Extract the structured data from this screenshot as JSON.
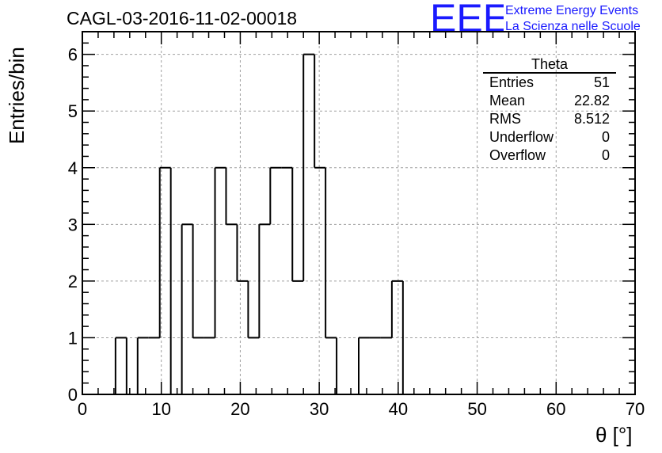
{
  "title": "CAGL-03-2016-11-02-00018",
  "logo": {
    "mark": "EEE",
    "line1": "Extreme Energy Events",
    "line2": "La Scienza nelle Scuole",
    "color": "#1a1aff"
  },
  "stats": {
    "title": "Theta",
    "rows": [
      {
        "label": "Entries",
        "value": "51"
      },
      {
        "label": "Mean",
        "value": "22.82"
      },
      {
        "label": "RMS",
        "value": "8.512"
      },
      {
        "label": "Underflow",
        "value": "0"
      },
      {
        "label": "Overflow",
        "value": "0"
      }
    ]
  },
  "chart_data": {
    "type": "bar",
    "style": "step-histogram",
    "xlabel": "θ [°]",
    "ylabel": "Entries/bin",
    "xlim": [
      0,
      70
    ],
    "ylim": [
      0,
      6.4
    ],
    "bin_width": 1.4,
    "x_ticks": [
      0,
      10,
      20,
      30,
      40,
      50,
      60,
      70
    ],
    "y_ticks": [
      0,
      1,
      2,
      3,
      4,
      5,
      6
    ],
    "grid": true,
    "bins": [
      {
        "x0": 4.2,
        "count": 1
      },
      {
        "x0": 5.6,
        "count": 0
      },
      {
        "x0": 7.0,
        "count": 1
      },
      {
        "x0": 8.4,
        "count": 1
      },
      {
        "x0": 9.8,
        "count": 4
      },
      {
        "x0": 11.2,
        "count": 0
      },
      {
        "x0": 12.6,
        "count": 3
      },
      {
        "x0": 14.0,
        "count": 1
      },
      {
        "x0": 15.4,
        "count": 1
      },
      {
        "x0": 16.8,
        "count": 4
      },
      {
        "x0": 18.2,
        "count": 3
      },
      {
        "x0": 19.6,
        "count": 2
      },
      {
        "x0": 21.0,
        "count": 1
      },
      {
        "x0": 22.4,
        "count": 3
      },
      {
        "x0": 23.8,
        "count": 4
      },
      {
        "x0": 25.2,
        "count": 4
      },
      {
        "x0": 26.6,
        "count": 2
      },
      {
        "x0": 28.0,
        "count": 6
      },
      {
        "x0": 29.4,
        "count": 4
      },
      {
        "x0": 30.8,
        "count": 1
      },
      {
        "x0": 32.2,
        "count": 0
      },
      {
        "x0": 33.6,
        "count": 0
      },
      {
        "x0": 35.0,
        "count": 1
      },
      {
        "x0": 36.4,
        "count": 1
      },
      {
        "x0": 37.8,
        "count": 1
      },
      {
        "x0": 39.2,
        "count": 2
      }
    ],
    "line_color": "#000000",
    "grid_color": "#a0a0a0"
  }
}
